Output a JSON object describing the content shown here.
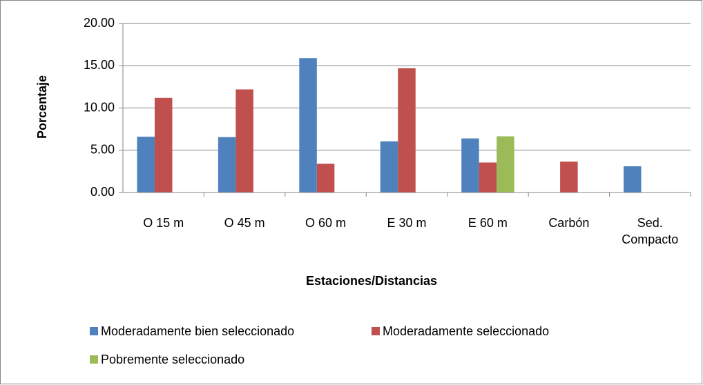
{
  "chart_data": {
    "type": "bar",
    "y_label": "Porcentaje",
    "x_label": "Estaciones/Distancias",
    "categories": [
      "O 15 m",
      "O 45 m",
      "O 60 m",
      "E 30 m",
      "E 60 m",
      "Carbón",
      "Sed. Compacto"
    ],
    "series": [
      {
        "name": "Moderadamente bien seleccionado",
        "color": "#4f81bd",
        "values": [
          6.6,
          6.55,
          15.9,
          6.05,
          6.4,
          null,
          3.1
        ]
      },
      {
        "name": "Moderadamente seleccionado",
        "color": "#c0504d",
        "values": [
          11.2,
          12.2,
          3.4,
          14.7,
          3.55,
          3.65,
          null
        ]
      },
      {
        "name": "Pobremente seleccionado",
        "color": "#9bbb59",
        "values": [
          null,
          null,
          null,
          null,
          6.65,
          null,
          null
        ]
      }
    ],
    "ylim": [
      0,
      20
    ],
    "yticks": [
      {
        "value": 0,
        "label": "0.00"
      },
      {
        "value": 5,
        "label": "5.00"
      },
      {
        "value": 10,
        "label": "10.00"
      },
      {
        "value": 15,
        "label": "15.00"
      },
      {
        "value": 20,
        "label": "20.00"
      }
    ],
    "grid": true
  }
}
